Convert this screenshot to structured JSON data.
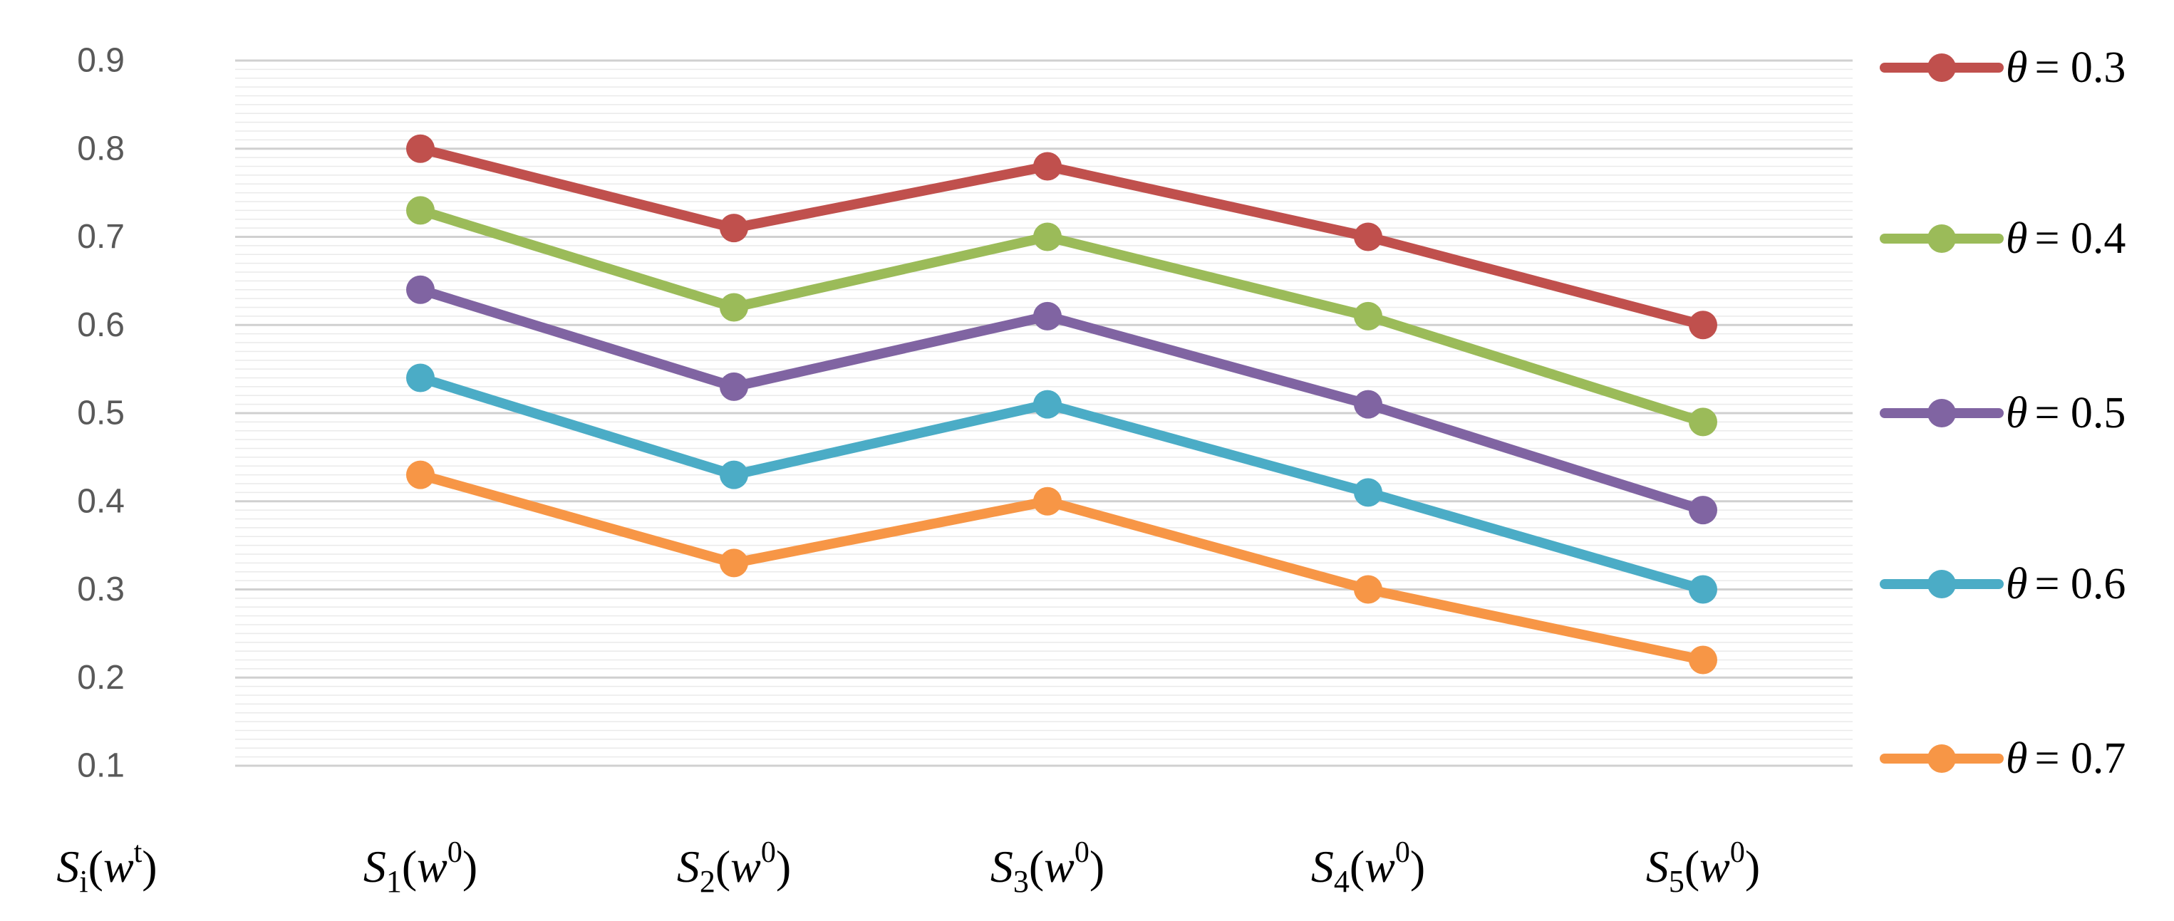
{
  "chart_data": {
    "type": "line",
    "title": "",
    "xlabel": "",
    "ylabel": "",
    "axis_title": {
      "base": "S",
      "sub": "i",
      "arg": "w",
      "sup": "t"
    },
    "categories": [
      {
        "base": "S",
        "sub": "1",
        "arg": "w",
        "sup": "0"
      },
      {
        "base": "S",
        "sub": "2",
        "arg": "w",
        "sup": "0"
      },
      {
        "base": "S",
        "sub": "3",
        "arg": "w",
        "sup": "0"
      },
      {
        "base": "S",
        "sub": "4",
        "arg": "w",
        "sup": "0"
      },
      {
        "base": "S",
        "sub": "5",
        "arg": "w",
        "sup": "0"
      }
    ],
    "ylim": [
      0.1,
      0.9
    ],
    "yticks": [
      "0.1",
      "0.2",
      "0.3",
      "0.4",
      "0.5",
      "0.6",
      "0.7",
      "0.8",
      "0.9"
    ],
    "grid": true,
    "legend_position": "right",
    "series": [
      {
        "symbol": "θ",
        "name": "= 0.3",
        "color": "#C0504D",
        "values": [
          0.8,
          0.71,
          0.78,
          0.7,
          0.6
        ]
      },
      {
        "symbol": "θ",
        "name": "= 0.4",
        "color": "#9BBB59",
        "values": [
          0.73,
          0.62,
          0.7,
          0.61,
          0.49
        ]
      },
      {
        "symbol": "θ",
        "name": "= 0.5",
        "color": "#8064A2",
        "values": [
          0.64,
          0.53,
          0.61,
          0.51,
          0.39
        ]
      },
      {
        "symbol": "θ",
        "name": "= 0.6",
        "color": "#4BACC6",
        "values": [
          0.54,
          0.43,
          0.51,
          0.41,
          0.3
        ]
      },
      {
        "symbol": "θ",
        "name": "= 0.7",
        "color": "#F79646",
        "values": [
          0.43,
          0.33,
          0.4,
          0.3,
          0.22
        ]
      }
    ]
  }
}
